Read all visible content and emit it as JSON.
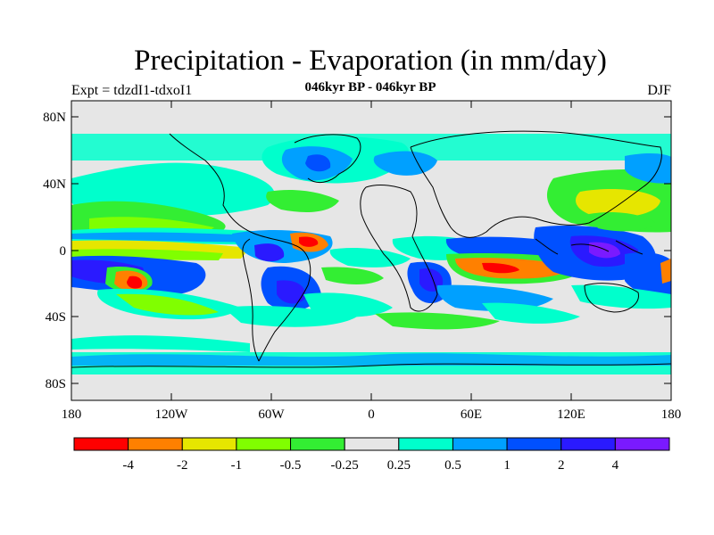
{
  "title": "Precipitation - Evaporation (in mm/day)",
  "subtitle": "046kyr BP - 046kyr BP",
  "expt_label": "Expt = tdzdI1-tdxoI1",
  "season": "DJF",
  "axes": {
    "lat_ticks": [
      "80N",
      "40N",
      "0",
      "40S",
      "80S"
    ],
    "lon_ticks": [
      "180",
      "120W",
      "60W",
      "0",
      "60E",
      "120E",
      "180"
    ]
  },
  "colorbar": {
    "colors": [
      "#ff0000",
      "#ff8000",
      "#e6e600",
      "#80ff00",
      "#33ee33",
      "#e6e6e6",
      "#00ffcc",
      "#00a0ff",
      "#0050ff",
      "#2a1aff",
      "#7a1aff"
    ],
    "labels": [
      "-4",
      "-2",
      "-1",
      "-0.5",
      "-0.25",
      "0.25",
      "0.5",
      "1",
      "2",
      "4"
    ]
  },
  "legend_colors": {
    "neutral": "#e6e6e6",
    "cyan": "#00ffcc",
    "lightblue": "#00a0ff",
    "blue": "#0050ff",
    "darkblue": "#2a1aff",
    "violet": "#7a1aff",
    "green": "#33ee33",
    "lime": "#80ff00",
    "yellow": "#e6e600",
    "orange": "#ff8000",
    "red": "#ff0000"
  }
}
